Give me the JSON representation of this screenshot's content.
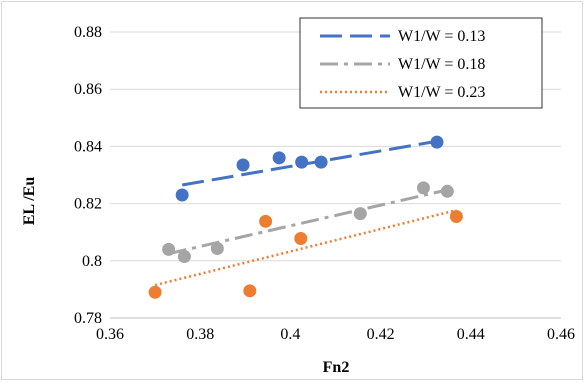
{
  "chart_data": {
    "type": "scatter",
    "title": "",
    "xlabel": "Fn2",
    "ylabel": "EL /Eu",
    "xlim": [
      0.36,
      0.46
    ],
    "ylim": [
      0.78,
      0.88
    ],
    "xticks": [
      "0.36",
      "0.38",
      "0.4",
      "0.42",
      "0.44",
      "0.46"
    ],
    "yticks": [
      "0.78",
      "0.8",
      "0.82",
      "0.84",
      "0.86",
      "0.88"
    ],
    "grid": "horizontal",
    "legend_position": "top-right",
    "series": [
      {
        "name": "W1/W = 0.13",
        "color": "#4472C4",
        "line_style": "dashed",
        "points": [
          [
            0.376,
            0.823
          ],
          [
            0.3895,
            0.8335
          ],
          [
            0.3975,
            0.836
          ],
          [
            0.4025,
            0.8345
          ],
          [
            0.4068,
            0.8345
          ],
          [
            0.4325,
            0.8415
          ]
        ],
        "trend": [
          [
            0.376,
            0.8265
          ],
          [
            0.4325,
            0.8418
          ]
        ]
      },
      {
        "name": "W1/W = 0.18",
        "color": "#A5A5A5",
        "line_style": "dash-dot",
        "points": [
          [
            0.373,
            0.804
          ],
          [
            0.3765,
            0.8015
          ],
          [
            0.3838,
            0.8043
          ],
          [
            0.4155,
            0.8165
          ],
          [
            0.4295,
            0.8255
          ],
          [
            0.4348,
            0.8243
          ]
        ],
        "trend": [
          [
            0.373,
            0.8025
          ],
          [
            0.4348,
            0.8248
          ]
        ]
      },
      {
        "name": "W1/W = 0.23",
        "color": "#ED7D31",
        "line_style": "dotted",
        "points": [
          [
            0.37,
            0.789
          ],
          [
            0.391,
            0.7895
          ],
          [
            0.3945,
            0.8138
          ],
          [
            0.4023,
            0.8078
          ],
          [
            0.4368,
            0.8155
          ]
        ],
        "trend": [
          [
            0.37,
            0.7915
          ],
          [
            0.4368,
            0.8177
          ]
        ]
      }
    ]
  }
}
